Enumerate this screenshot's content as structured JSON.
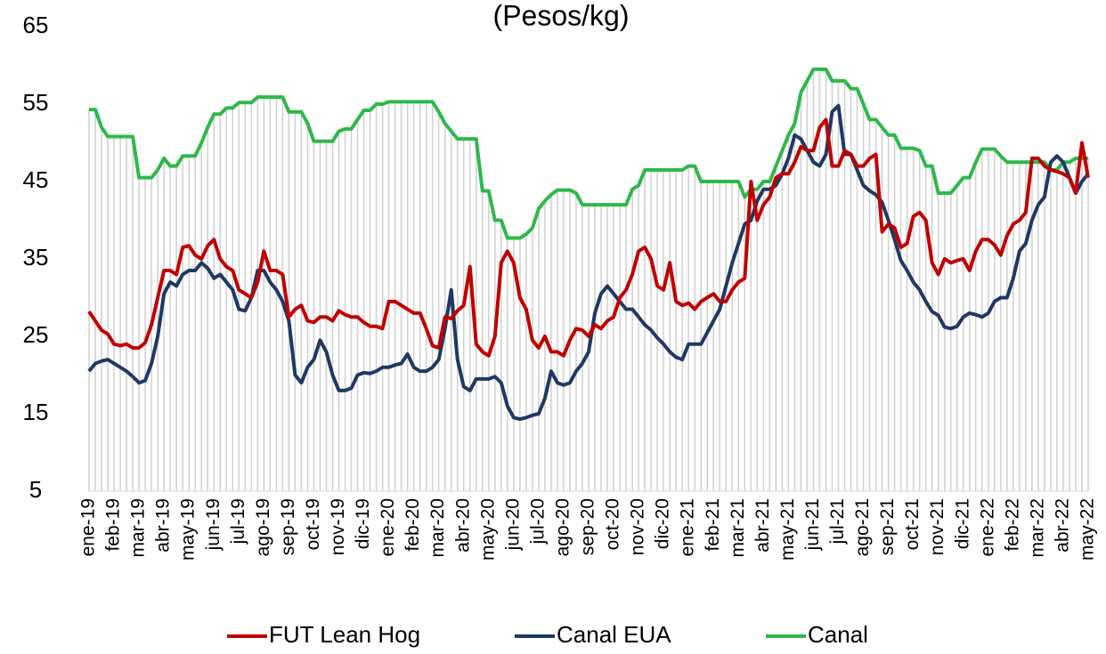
{
  "chart_data": {
    "type": "line",
    "title": "(Pesos/kg)",
    "categories": [
      "ene-19",
      null,
      null,
      null,
      "feb-19",
      null,
      null,
      null,
      "mar-19",
      null,
      null,
      null,
      "abr-19",
      null,
      null,
      null,
      "may-19",
      null,
      null,
      null,
      "jun-19",
      null,
      null,
      null,
      "jul-19",
      null,
      null,
      null,
      "ago-19",
      null,
      null,
      null,
      "sep-19",
      null,
      null,
      null,
      "oct-19",
      null,
      null,
      null,
      "nov-19",
      null,
      null,
      null,
      "dic-19",
      null,
      null,
      null,
      "ene-20",
      null,
      null,
      null,
      "feb-20",
      null,
      null,
      null,
      "mar-20",
      null,
      null,
      null,
      "abr-20",
      null,
      null,
      null,
      "may-20",
      null,
      null,
      null,
      "jun-20",
      null,
      null,
      null,
      "jul-20",
      null,
      null,
      null,
      "ago-20",
      null,
      null,
      null,
      "sep-20",
      null,
      null,
      null,
      "oct-20",
      null,
      null,
      null,
      "nov-20",
      null,
      null,
      null,
      "dic-20",
      null,
      null,
      null,
      "ene-21",
      null,
      null,
      null,
      "feb-21",
      null,
      null,
      null,
      "mar-21",
      null,
      null,
      null,
      "abr-21",
      null,
      null,
      null,
      "may-21",
      null,
      null,
      null,
      "jun-21",
      null,
      null,
      null,
      "jul-21",
      null,
      null,
      null,
      "ago-21",
      null,
      null,
      null,
      "sep-21",
      null,
      null,
      null,
      "oct-21",
      null,
      null,
      null,
      "nov-21",
      null,
      null,
      null,
      "dic-21",
      null,
      null,
      null,
      "ene-22",
      null,
      null,
      null,
      "feb-22",
      null,
      null,
      null,
      "mar-22",
      null,
      null,
      null,
      "abr-22",
      null,
      null,
      null,
      "may-22"
    ],
    "series": [
      {
        "name": "FUT Lean Hog",
        "color": "#c00000",
        "values": [
          28.2,
          27,
          25.8,
          25.3,
          24,
          23.8,
          24,
          23.5,
          23.5,
          24.2,
          26.5,
          30,
          33.5,
          33.5,
          33,
          36.5,
          36.7,
          35.5,
          35,
          36.7,
          37.5,
          35,
          34,
          33.5,
          31,
          30.5,
          30,
          32,
          36,
          33.5,
          33.5,
          33,
          27.5,
          28.5,
          29,
          27,
          26.8,
          27.5,
          27.5,
          27,
          28.3,
          27.8,
          27.5,
          27.5,
          26.8,
          26.3,
          26.3,
          26,
          29.5,
          29.5,
          29,
          28.5,
          28,
          28,
          26,
          23.8,
          23.5,
          27.5,
          27.3,
          28.3,
          29,
          34,
          24,
          23,
          22.5,
          25,
          34.5,
          36,
          34.5,
          30,
          28.5,
          24.5,
          23.5,
          25,
          23,
          23,
          22.5,
          24.5,
          26,
          25.8,
          25,
          26.5,
          26,
          27,
          27.5,
          30,
          31,
          33,
          36,
          36.5,
          35,
          31.5,
          31,
          34.5,
          29.5,
          29,
          29.3,
          28.5,
          29.5,
          30,
          30.5,
          29.5,
          29.5,
          31,
          32,
          32.5,
          45,
          40,
          42,
          43,
          45.5,
          46,
          46,
          47.5,
          49.5,
          49,
          49,
          52,
          53,
          47,
          47,
          49,
          48.5,
          47,
          47,
          48,
          48.5,
          38.5,
          39.5,
          39,
          36.5,
          37,
          40.5,
          41,
          40,
          34.5,
          33,
          35,
          34.5,
          34.8,
          35,
          33.5,
          36,
          37.5,
          37.5,
          36.8,
          35.5,
          38,
          39.5,
          40,
          41,
          48,
          48,
          47,
          46.5,
          46.3,
          46,
          45.5,
          43.5,
          50,
          45.5
        ]
      },
      {
        "name": "Canal EUA",
        "color": "#1f3864",
        "values": [
          20.5,
          21.5,
          21.8,
          22,
          21.5,
          21,
          20.5,
          19.8,
          19,
          19.3,
          21.5,
          25,
          30.5,
          32,
          31.5,
          33,
          33.5,
          33.5,
          34.5,
          33.8,
          32.5,
          33,
          32,
          31,
          28.5,
          28.3,
          30,
          33.5,
          33.5,
          32,
          31,
          29.5,
          27,
          20,
          19,
          21,
          22,
          24.5,
          23,
          20,
          18,
          18,
          18.3,
          20,
          20.3,
          20.2,
          20.5,
          21,
          21,
          21.3,
          21.5,
          22.7,
          21,
          20.5,
          20.5,
          21,
          22,
          26,
          31,
          22,
          18.5,
          18,
          19.5,
          19.5,
          19.5,
          19.8,
          19,
          16,
          14.5,
          14.3,
          14.5,
          14.8,
          15,
          17,
          20.5,
          19,
          18.7,
          19,
          20.5,
          21.5,
          23,
          28,
          30.5,
          31.5,
          30.5,
          29.5,
          28.5,
          28.5,
          27.5,
          26.5,
          25.8,
          24.8,
          24,
          23,
          22.3,
          22,
          24,
          24,
          24,
          25.5,
          27,
          28.5,
          31.5,
          34.5,
          37,
          39.5,
          40,
          42.5,
          44,
          44,
          44.5,
          46,
          48,
          51,
          50.5,
          49,
          47.5,
          47,
          48.5,
          54,
          54.8,
          48.5,
          48.5,
          46.5,
          44.5,
          43.8,
          43.3,
          42.3,
          40,
          37.5,
          34.8,
          33.5,
          32,
          31,
          29.5,
          28.2,
          27.7,
          26.2,
          26,
          26.3,
          27.5,
          28,
          27.8,
          27.5,
          28,
          29.5,
          30,
          30,
          32.5,
          36,
          37,
          40,
          42,
          43,
          47.5,
          48.3,
          47.5,
          45.5,
          43.5,
          45,
          46
        ]
      },
      {
        "name": "Canal",
        "color": "#2eb84b",
        "values": [
          54.3,
          54.3,
          52,
          50.8,
          50.8,
          50.8,
          50.8,
          50.8,
          45.5,
          45.5,
          45.5,
          46.5,
          48,
          47,
          47,
          48.3,
          48.3,
          48.3,
          50,
          52,
          53.7,
          53.7,
          54.5,
          54.5,
          55.2,
          55.2,
          55.2,
          55.9,
          55.9,
          55.9,
          55.9,
          55.9,
          54,
          54,
          54,
          52.5,
          50.2,
          50.2,
          50.2,
          50.2,
          51.5,
          51.8,
          51.8,
          53,
          54.2,
          54.2,
          55,
          55,
          55.3,
          55.3,
          55.3,
          55.3,
          55.3,
          55.3,
          55.3,
          55.3,
          54,
          52.5,
          51.5,
          50.5,
          50.5,
          50.5,
          50.5,
          43.8,
          43.8,
          40,
          40,
          37.7,
          37.7,
          37.7,
          38.2,
          39,
          41.5,
          42.5,
          43.3,
          43.9,
          43.9,
          43.9,
          43.5,
          42,
          42,
          42,
          42,
          42,
          42,
          42,
          42,
          44,
          44.5,
          46.5,
          46.5,
          46.5,
          46.5,
          46.5,
          46.5,
          46.5,
          47,
          47,
          45,
          45,
          45,
          45,
          45,
          45,
          45,
          43,
          44,
          44,
          45,
          45,
          47,
          49,
          51,
          52.5,
          56.5,
          58,
          59.5,
          59.5,
          59.5,
          58,
          58,
          58,
          57,
          57,
          55,
          53,
          53,
          52,
          51,
          51,
          49.3,
          49.3,
          49.3,
          49,
          47,
          47,
          43.5,
          43.5,
          43.5,
          44.5,
          45.5,
          45.5,
          47.5,
          49.2,
          49.2,
          49.2,
          48.3,
          47.5,
          47.5,
          47.5,
          47.5,
          47.5,
          47.5,
          47.5,
          46.5,
          46.5,
          47.5,
          47.5,
          48,
          48,
          48
        ]
      }
    ],
    "hatch_color": "#d0d0d0",
    "ylim": [
      5,
      65
    ],
    "yticks": [
      5,
      15,
      25,
      35,
      45,
      55,
      65
    ]
  }
}
